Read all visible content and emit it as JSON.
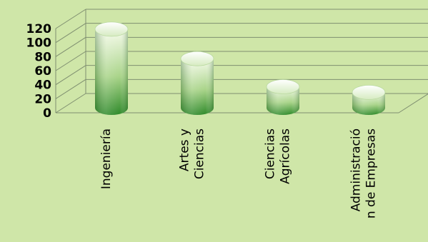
{
  "chart_data": {
    "type": "bar",
    "categories": [
      "Ingeniería",
      "Artes y Ciencias",
      "Ciencias Agrícolas",
      "Administración de Empresas"
    ],
    "category_lines": [
      [
        "Ingeniería"
      ],
      [
        "Artes y",
        "Ciencias"
      ],
      [
        "Ciencias",
        "Agrícolas"
      ],
      [
        "Administració",
        "n de Empresas"
      ]
    ],
    "values": [
      112,
      70,
      30,
      22
    ],
    "yticks": [
      "0",
      "20",
      "40",
      "60",
      "80",
      "100",
      "120"
    ],
    "ylim": [
      0,
      120
    ],
    "grid": true,
    "bar_shape": "cylinder-3d",
    "colors": {
      "background": "#cfe6a8",
      "bar_dark": "#2f8a2a",
      "bar_light": "#f2f8e4",
      "grid": "#7f8f70"
    }
  }
}
